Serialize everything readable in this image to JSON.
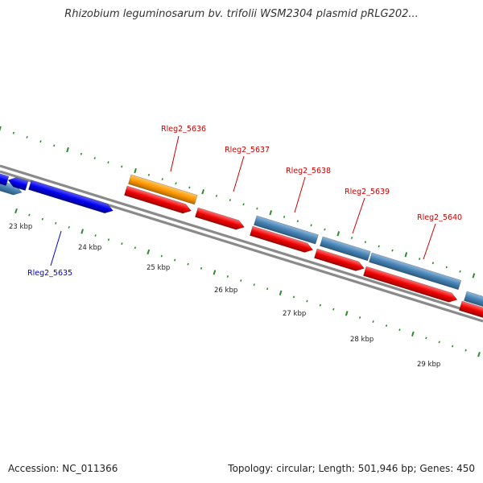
{
  "title": "Rhizobium leguminosarum bv. trifolii WSM2304 plasmid pRLG202...",
  "footer": {
    "accession": "Accession: NC_011366",
    "summary": "Topology: circular; Length: 501,946 bp; Genes: 450"
  },
  "colors": {
    "backbone": "#8a8a8a",
    "tick": "#2e8b2e",
    "forward_gene": "#4682b4",
    "reverse_gene": "#ee0000",
    "highlight_gene": "#ff9900",
    "selected_gene": "#0000ee",
    "label_red": "#cc0000",
    "label_blue": "#0000cc"
  },
  "scale_labels": [
    "23 kbp",
    "24 kbp",
    "25 kbp",
    "26 kbp",
    "27 kbp",
    "28 kbp",
    "29 kbp"
  ],
  "gene_labels": [
    {
      "id": "Rleg2_5635",
      "color": "blue"
    },
    {
      "id": "Rleg2_5636",
      "color": "red"
    },
    {
      "id": "Rleg2_5637",
      "color": "red"
    },
    {
      "id": "Rleg2_5638",
      "color": "red"
    },
    {
      "id": "Rleg2_5639",
      "color": "red"
    },
    {
      "id": "Rleg2_5640",
      "color": "red"
    }
  ]
}
